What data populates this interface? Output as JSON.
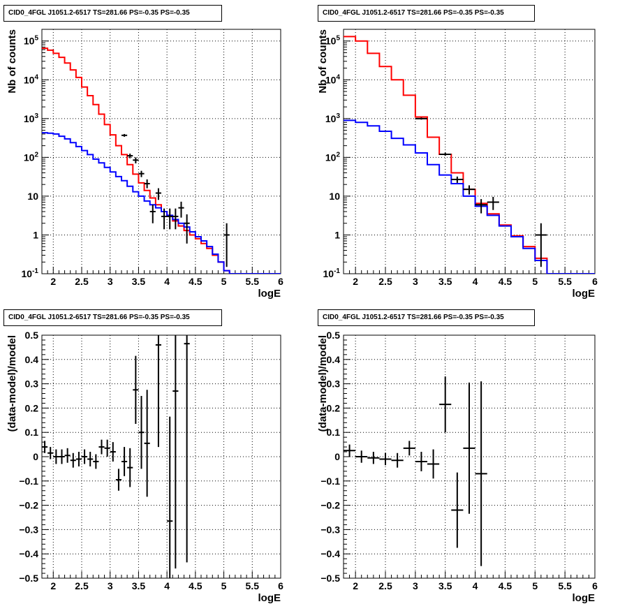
{
  "chart_data": [
    {
      "type": "step-histogram",
      "title": "CID0_4FGL J1051.2-6517 TS=281.66 PS=-0.35 PS=-0.35",
      "xlabel": "logE",
      "ylabel": "Nb of counts",
      "xlim": [
        1.8,
        6.0
      ],
      "ylim": [
        0.1,
        200000
      ],
      "yscale": "log",
      "grid": true,
      "x_ticks": [
        "2",
        "2.5",
        "3",
        "3.5",
        "4",
        "4.5",
        "5",
        "5.5",
        "6"
      ],
      "y_ticks": [
        "10^-1",
        "1",
        "10",
        "10^2",
        "10^3",
        "10^4",
        "10^5"
      ],
      "bin_edges": [
        1.8,
        1.9,
        2.0,
        2.1,
        2.2,
        2.3,
        2.4,
        2.5,
        2.6,
        2.7,
        2.8,
        2.9,
        3.0,
        3.1,
        3.2,
        3.3,
        3.4,
        3.5,
        3.6,
        3.7,
        3.8,
        3.9,
        4.0,
        4.1,
        4.2,
        4.3,
        4.4,
        4.5,
        4.6,
        4.7,
        4.8,
        4.9,
        5.0,
        5.1,
        5.2,
        5.3,
        5.4,
        5.5,
        5.6,
        5.7,
        5.8,
        5.9,
        6.0
      ],
      "series": [
        {
          "color": "#ff0000",
          "values": [
            65000,
            58000,
            48000,
            38000,
            27000,
            18000,
            11500,
            6500,
            3900,
            2300,
            1300,
            700,
            380,
            200,
            118,
            65,
            37,
            22,
            14,
            9,
            6,
            4,
            3,
            2.3,
            1.7,
            1.3,
            1.0,
            0.8,
            0.6,
            0.45,
            0.3,
            0.2,
            0.12,
            0.1,
            0.1,
            0.1,
            0.1,
            0.1,
            0.1,
            0.1,
            0.1,
            0.1
          ]
        },
        {
          "color": "#0000ff",
          "values": [
            430,
            420,
            400,
            350,
            300,
            240,
            190,
            150,
            118,
            90,
            72,
            55,
            42,
            32,
            25,
            18,
            13,
            10,
            7.5,
            6,
            5,
            4,
            3.2,
            2.5,
            2,
            1.6,
            1.2,
            0.9,
            0.7,
            0.5,
            0.32,
            0.2,
            0.12,
            0.1,
            0.1,
            0.1,
            0.1,
            0.1,
            0.1,
            0.1,
            0.1,
            0.1
          ]
        }
      ],
      "data_points": [
        {
          "x": 3.25,
          "y": 370,
          "ylo": 340,
          "yhi": 400
        },
        {
          "x": 3.35,
          "y": 110,
          "ylo": 95,
          "yhi": 125
        },
        {
          "x": 3.45,
          "y": 85,
          "ylo": 70,
          "yhi": 100
        },
        {
          "x": 3.55,
          "y": 38,
          "ylo": 31,
          "yhi": 45
        },
        {
          "x": 3.65,
          "y": 21,
          "ylo": 16,
          "yhi": 27
        },
        {
          "x": 3.75,
          "y": 4,
          "ylo": 2,
          "yhi": 6
        },
        {
          "x": 3.85,
          "y": 12,
          "ylo": 8,
          "yhi": 16
        },
        {
          "x": 3.95,
          "y": 3,
          "ylo": 1.4,
          "yhi": 4.8
        },
        {
          "x": 4.05,
          "y": 3,
          "ylo": 1.4,
          "yhi": 4.8
        },
        {
          "x": 4.15,
          "y": 3,
          "ylo": 1.4,
          "yhi": 4.8
        },
        {
          "x": 4.25,
          "y": 5,
          "ylo": 2.8,
          "yhi": 7.2
        },
        {
          "x": 4.35,
          "y": 2,
          "ylo": 0.6,
          "yhi": 3.4
        },
        {
          "x": 5.05,
          "y": 1,
          "ylo": 0.15,
          "yhi": 2.0
        }
      ]
    },
    {
      "type": "step-histogram",
      "title": "CID0_4FGL J1051.2-6517 TS=281.66 PS=-0.35 PS=-0.35",
      "xlabel": "logE",
      "ylabel": "Nb of counts",
      "xlim": [
        1.8,
        6.0
      ],
      "ylim": [
        0.1,
        200000
      ],
      "yscale": "log",
      "grid": true,
      "x_ticks": [
        "2",
        "2.5",
        "3",
        "3.5",
        "4",
        "4.5",
        "5",
        "5.5",
        "6"
      ],
      "y_ticks": [
        "10^-1",
        "1",
        "10",
        "10^2",
        "10^3",
        "10^4",
        "10^5"
      ],
      "bin_edges": [
        1.8,
        2.0,
        2.2,
        2.4,
        2.6,
        2.8,
        3.0,
        3.2,
        3.4,
        3.6,
        3.8,
        4.0,
        4.2,
        4.4,
        4.6,
        4.8,
        5.0,
        5.2,
        5.4,
        5.6,
        5.8,
        6.0
      ],
      "series": [
        {
          "color": "#ff0000",
          "values": [
            130000,
            100000,
            48000,
            22000,
            10000,
            4000,
            1100,
            330,
            120,
            40,
            15,
            6.5,
            3.5,
            1.8,
            0.95,
            0.5,
            0.25,
            0.1,
            0.1,
            0.1,
            0.1
          ]
        },
        {
          "color": "#0000ff",
          "values": [
            900,
            800,
            650,
            470,
            310,
            210,
            130,
            65,
            35,
            21,
            10,
            5.5,
            3.2,
            1.7,
            0.9,
            0.45,
            0.22,
            0.1,
            0.1,
            0.1,
            0.1
          ]
        }
      ],
      "data_points": [
        {
          "x": 3.1,
          "y": 1000,
          "ylo": 940,
          "yhi": 1060
        },
        {
          "x": 3.5,
          "y": 120,
          "ylo": 110,
          "yhi": 132
        },
        {
          "x": 3.7,
          "y": 27,
          "ylo": 22,
          "yhi": 32
        },
        {
          "x": 3.9,
          "y": 15,
          "ylo": 11,
          "yhi": 19
        },
        {
          "x": 4.1,
          "y": 6,
          "ylo": 3.6,
          "yhi": 8.4
        },
        {
          "x": 4.3,
          "y": 7,
          "ylo": 4.4,
          "yhi": 9.6
        },
        {
          "x": 5.1,
          "y": 1,
          "ylo": 0.15,
          "yhi": 2.0
        }
      ]
    },
    {
      "type": "errorbar",
      "title": "CID0_4FGL J1051.2-6517 TS=281.66 PS=-0.35 PS=-0.35",
      "xlabel": "logE",
      "ylabel": "(data-model)/model",
      "xlim": [
        1.8,
        6.0
      ],
      "ylim": [
        -0.5,
        0.5
      ],
      "grid": true,
      "x_ticks": [
        "2",
        "2.5",
        "3",
        "3.5",
        "4",
        "4.5",
        "5",
        "5.5",
        "6"
      ],
      "y_ticks": [
        "−0.5",
        "−0.4",
        "−0.3",
        "−0.2",
        "−0.1",
        "0",
        "0.1",
        "0.2",
        "0.3",
        "0.4",
        "0.5"
      ],
      "half_width": 0.05,
      "points": [
        {
          "x": 1.85,
          "y": 0.04,
          "err": 0.025
        },
        {
          "x": 1.95,
          "y": 0.015,
          "err": 0.025
        },
        {
          "x": 2.05,
          "y": 0.0,
          "err": 0.03
        },
        {
          "x": 2.15,
          "y": 0.0,
          "err": 0.03
        },
        {
          "x": 2.25,
          "y": 0.005,
          "err": 0.03
        },
        {
          "x": 2.35,
          "y": -0.015,
          "err": 0.03
        },
        {
          "x": 2.45,
          "y": -0.01,
          "err": 0.03
        },
        {
          "x": 2.55,
          "y": 0.0,
          "err": 0.03
        },
        {
          "x": 2.65,
          "y": -0.01,
          "err": 0.03
        },
        {
          "x": 2.75,
          "y": -0.02,
          "err": 0.03
        },
        {
          "x": 2.85,
          "y": 0.04,
          "err": 0.03
        },
        {
          "x": 2.95,
          "y": 0.035,
          "err": 0.035
        },
        {
          "x": 3.05,
          "y": 0.02,
          "err": 0.04
        },
        {
          "x": 3.15,
          "y": -0.095,
          "err": 0.045
        },
        {
          "x": 3.25,
          "y": -0.02,
          "err": 0.06
        },
        {
          "x": 3.35,
          "y": -0.045,
          "err": 0.08
        },
        {
          "x": 3.45,
          "y": 0.275,
          "err": 0.14
        },
        {
          "x": 3.55,
          "y": 0.1,
          "err": 0.15
        },
        {
          "x": 3.65,
          "y": 0.055,
          "err": 0.22
        },
        {
          "x": 3.85,
          "y": 0.46,
          "err": 0.42
        },
        {
          "x": 4.05,
          "y": -0.265,
          "err": 0.43
        },
        {
          "x": 4.15,
          "y": 0.27,
          "err": 0.73
        },
        {
          "x": 4.35,
          "y": 0.465,
          "err": 0.9
        }
      ]
    },
    {
      "type": "errorbar",
      "title": "CID0_4FGL J1051.2-6517 TS=281.66 PS=-0.35 PS=-0.35",
      "xlabel": "logE",
      "ylabel": "(data-model)/model",
      "xlim": [
        1.8,
        6.0
      ],
      "ylim": [
        -0.5,
        0.5
      ],
      "grid": true,
      "x_ticks": [
        "2",
        "2.5",
        "3",
        "3.5",
        "4",
        "4.5",
        "5",
        "5.5",
        "6"
      ],
      "y_ticks": [
        "−0.5",
        "−0.4",
        "−0.3",
        "−0.2",
        "−0.1",
        "0",
        "0.1",
        "0.2",
        "0.3",
        "0.4",
        "0.5"
      ],
      "half_width": 0.1,
      "points": [
        {
          "x": 1.9,
          "y": 0.025,
          "err": 0.025
        },
        {
          "x": 2.1,
          "y": 0.0,
          "err": 0.025
        },
        {
          "x": 2.3,
          "y": -0.005,
          "err": 0.025
        },
        {
          "x": 2.5,
          "y": -0.01,
          "err": 0.025
        },
        {
          "x": 2.7,
          "y": -0.015,
          "err": 0.03
        },
        {
          "x": 2.9,
          "y": 0.035,
          "err": 0.03
        },
        {
          "x": 3.1,
          "y": -0.02,
          "err": 0.04
        },
        {
          "x": 3.3,
          "y": -0.03,
          "err": 0.06
        },
        {
          "x": 3.5,
          "y": 0.215,
          "err": 0.115
        },
        {
          "x": 3.7,
          "y": -0.22,
          "err": 0.155
        },
        {
          "x": 3.9,
          "y": 0.035,
          "err": 0.27
        },
        {
          "x": 4.1,
          "y": -0.07,
          "err": 0.38
        }
      ]
    }
  ]
}
